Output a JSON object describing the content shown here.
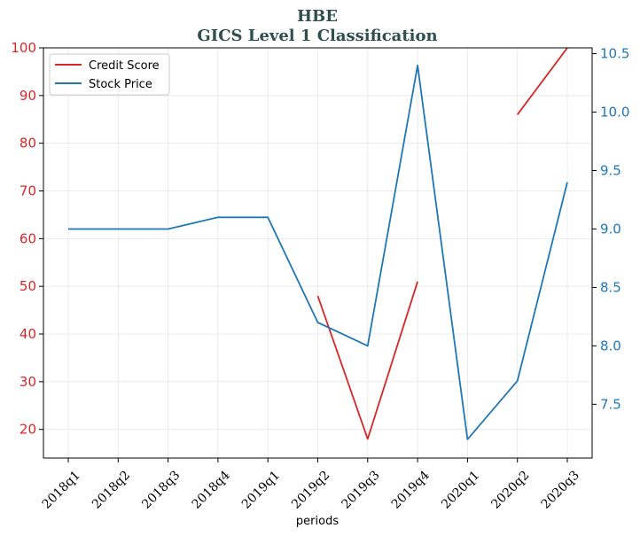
{
  "chart_data": {
    "type": "line",
    "title": "HBE",
    "subtitle": "GICS Level 1 Classification",
    "xlabel": "periods",
    "categories": [
      "2018q1",
      "2018q2",
      "2018q3",
      "2018q4",
      "2019q1",
      "2019q2",
      "2019q3",
      "2019q4",
      "2020q1",
      "2020q2",
      "2020q3"
    ],
    "left_axis": {
      "ylim": [
        14,
        100
      ],
      "ticks": [
        20,
        30,
        40,
        50,
        60,
        70,
        80,
        90,
        100
      ],
      "color": "#d62728"
    },
    "right_axis": {
      "ylim": [
        7.04,
        10.55
      ],
      "ticks": [
        "7.5",
        "8.0",
        "8.5",
        "9.0",
        "9.5",
        "10.0",
        "10.5"
      ],
      "color": "#1f77b4"
    },
    "series": [
      {
        "name": "Credit Score",
        "axis": "left",
        "color": "#d62728",
        "values": [
          null,
          null,
          null,
          null,
          null,
          48,
          18,
          51,
          null,
          86,
          100
        ]
      },
      {
        "name": "Stock Price",
        "axis": "right",
        "color": "#1f77b4",
        "values": [
          9.0,
          9.0,
          9.0,
          9.1,
          9.1,
          8.2,
          8.0,
          10.4,
          7.2,
          7.7,
          9.4
        ]
      }
    ],
    "legend_position": "top-left",
    "grid": true
  }
}
